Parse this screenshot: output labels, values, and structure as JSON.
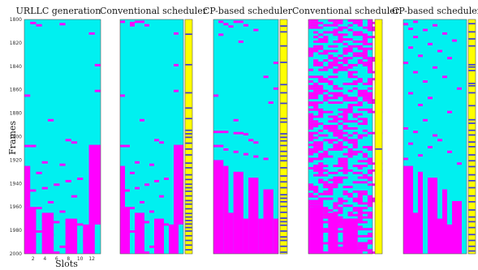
{
  "colors": {
    "free": "#00f0f0",
    "occupied": "#ff00ff",
    "strip_background": "#ffff00",
    "strip_mark": "#3a3adf"
  },
  "chart_data": [
    {
      "type": "heatmap",
      "title": "URLLC generation",
      "xlabel": "Slots",
      "ylabel": "Frames",
      "x_ticks": [
        2,
        4,
        6,
        8,
        10,
        12
      ],
      "y_ticks": [
        1800,
        1820,
        1840,
        1860,
        1880,
        1900,
        1920,
        1940,
        1960,
        1980,
        2000
      ],
      "slots": 13,
      "frame_range": [
        1800,
        2000
      ],
      "occupied_cells": [
        [
          1802,
          2
        ],
        [
          1804,
          3
        ],
        [
          1803,
          7
        ],
        [
          1811,
          12
        ],
        [
          1838,
          13
        ],
        [
          1860,
          13
        ],
        [
          1864,
          1
        ],
        [
          1885,
          5
        ],
        [
          1902,
          8
        ],
        [
          1904,
          9
        ],
        [
          1907,
          1
        ],
        [
          1907,
          2
        ],
        [
          1921,
          4
        ],
        [
          1923,
          7
        ],
        [
          1930,
          3
        ],
        [
          1935,
          10
        ],
        [
          1937,
          8
        ],
        [
          1940,
          6
        ],
        [
          1943,
          4
        ],
        [
          1945,
          1
        ],
        [
          1945,
          2
        ],
        [
          1950,
          9
        ],
        [
          1955,
          5
        ],
        [
          1960,
          3
        ],
        [
          1963,
          7
        ],
        [
          1970,
          1
        ],
        [
          1970,
          2
        ],
        [
          1971,
          4
        ],
        [
          1972,
          6
        ],
        [
          1973,
          8
        ],
        [
          1974,
          10
        ],
        [
          1975,
          12
        ],
        [
          1980,
          3
        ],
        [
          1983,
          5
        ],
        [
          1985,
          9
        ],
        [
          1988,
          11
        ],
        [
          1990,
          2
        ],
        [
          1993,
          7
        ],
        [
          1996,
          4
        ],
        [
          1998,
          6
        ]
      ],
      "occupied_bands": [
        [
          1907,
          1975,
          12,
          13
        ],
        [
          1925,
          1960,
          1,
          1
        ],
        [
          1960,
          2000,
          1,
          2
        ],
        [
          1965,
          2000,
          4,
          5
        ],
        [
          1970,
          2000,
          8,
          9
        ],
        [
          1975,
          2000,
          11,
          12
        ]
      ]
    },
    {
      "type": "heatmap",
      "title": "Conventional scheduler",
      "slots": 13,
      "frame_range": [
        1800,
        2000
      ],
      "occupied_cells": [
        [
          1801,
          1
        ],
        [
          1801,
          4
        ],
        [
          1801,
          5
        ],
        [
          1802,
          3
        ],
        [
          1804,
          3
        ],
        [
          1804,
          6
        ],
        [
          1811,
          12
        ],
        [
          1838,
          12
        ],
        [
          1860,
          12
        ],
        [
          1864,
          1
        ],
        [
          1885,
          5
        ],
        [
          1902,
          8
        ],
        [
          1904,
          9
        ],
        [
          1907,
          1
        ],
        [
          1907,
          2
        ],
        [
          1921,
          4
        ],
        [
          1923,
          7
        ],
        [
          1930,
          3
        ],
        [
          1935,
          10
        ],
        [
          1937,
          8
        ],
        [
          1940,
          6
        ],
        [
          1943,
          4
        ],
        [
          1945,
          1
        ],
        [
          1945,
          2
        ],
        [
          1950,
          9
        ],
        [
          1955,
          5
        ],
        [
          1960,
          3
        ],
        [
          1963,
          7
        ],
        [
          1970,
          1
        ],
        [
          1970,
          2
        ],
        [
          1971,
          4
        ],
        [
          1972,
          6
        ],
        [
          1973,
          8
        ],
        [
          1974,
          10
        ],
        [
          1975,
          12
        ],
        [
          1980,
          3
        ],
        [
          1983,
          5
        ],
        [
          1985,
          9
        ],
        [
          1988,
          11
        ],
        [
          1990,
          2
        ],
        [
          1993,
          7
        ],
        [
          1996,
          4
        ],
        [
          1998,
          6
        ]
      ],
      "occupied_bands": [
        [
          1907,
          1975,
          12,
          13
        ],
        [
          1925,
          1960,
          1,
          1
        ],
        [
          1960,
          2000,
          1,
          2
        ],
        [
          1965,
          2000,
          4,
          5
        ],
        [
          1970,
          2000,
          8,
          9
        ],
        [
          1975,
          2000,
          11,
          12
        ]
      ],
      "strip_marks": [
        1812,
        1838,
        1862,
        1875,
        1884,
        1894,
        1897,
        1900,
        1905,
        1910,
        1915,
        1922,
        1926,
        1932,
        1936,
        1940,
        1943,
        1946,
        1950,
        1954,
        1957,
        1961,
        1965,
        1968,
        1971,
        1974,
        1977,
        1980,
        1984,
        1988,
        1992,
        1996
      ]
    },
    {
      "type": "heatmap",
      "title": "CP-based scheduler",
      "slots": 13,
      "frame_range": [
        1800,
        2000
      ],
      "occupied_cells": [
        [
          1801,
          2
        ],
        [
          1801,
          5
        ],
        [
          1801,
          6
        ],
        [
          1803,
          3
        ],
        [
          1804,
          7
        ],
        [
          1805,
          4
        ],
        [
          1808,
          9
        ],
        [
          1812,
          2
        ],
        [
          1818,
          6
        ],
        [
          1836,
          13
        ],
        [
          1848,
          11
        ],
        [
          1858,
          13
        ],
        [
          1864,
          1
        ],
        [
          1870,
          12
        ],
        [
          1885,
          5
        ],
        [
          1895,
          1
        ],
        [
          1895,
          2
        ],
        [
          1895,
          3
        ],
        [
          1896,
          5
        ],
        [
          1896,
          6
        ],
        [
          1897,
          7
        ],
        [
          1902,
          8
        ],
        [
          1904,
          9
        ],
        [
          1907,
          1
        ],
        [
          1907,
          2
        ],
        [
          1910,
          3
        ],
        [
          1912,
          5
        ],
        [
          1914,
          7
        ],
        [
          1916,
          9
        ],
        [
          1918,
          11
        ]
      ],
      "occupied_bands": [
        [
          1920,
          2000,
          1,
          2
        ],
        [
          1925,
          2000,
          3,
          3
        ],
        [
          1930,
          2000,
          5,
          6
        ],
        [
          1935,
          2000,
          8,
          9
        ],
        [
          1945,
          2000,
          11,
          12
        ],
        [
          1965,
          2000,
          4,
          4
        ],
        [
          1970,
          2000,
          7,
          7
        ],
        [
          1970,
          2000,
          10,
          10
        ],
        [
          1970,
          2000,
          13,
          13
        ]
      ],
      "strip_marks": [
        1805,
        1810,
        1822,
        1836,
        1855,
        1862,
        1871,
        1884,
        1887,
        1897,
        1900,
        1903,
        1907,
        1912,
        1916,
        1920,
        1926,
        1933,
        1938,
        1943,
        1949,
        1952,
        1955,
        1959,
        1964,
        1969,
        1972,
        1975,
        1980,
        1985,
        1988,
        1993,
        1998
      ]
    },
    {
      "type": "heatmap",
      "title": "Conventional scheduler",
      "slots": 13,
      "frame_range": [
        1800,
        2000
      ],
      "dense_fill": 0.45,
      "occupied_cells": [],
      "occupied_bands": [
        [
          1960,
          2000,
          1,
          3
        ],
        [
          1965,
          2000,
          5,
          6
        ],
        [
          1970,
          2000,
          8,
          10
        ]
      ],
      "strip_marks": [
        1910
      ]
    },
    {
      "type": "heatmap",
      "title": "CP-based scheduler",
      "slots": 13,
      "frame_range": [
        1800,
        2000
      ],
      "occupied_cells": [
        [
          1801,
          3
        ],
        [
          1803,
          1
        ],
        [
          1804,
          7
        ],
        [
          1807,
          2
        ],
        [
          1808,
          5
        ],
        [
          1811,
          9
        ],
        [
          1814,
          3
        ],
        [
          1817,
          11
        ],
        [
          1820,
          6
        ],
        [
          1823,
          2
        ],
        [
          1826,
          8
        ],
        [
          1830,
          4
        ],
        [
          1832,
          10
        ],
        [
          1836,
          1
        ],
        [
          1840,
          7
        ],
        [
          1844,
          3
        ],
        [
          1848,
          9
        ],
        [
          1852,
          5
        ],
        [
          1858,
          12
        ],
        [
          1862,
          2
        ],
        [
          1866,
          6
        ],
        [
          1872,
          4
        ],
        [
          1878,
          10
        ],
        [
          1885,
          5
        ],
        [
          1892,
          1
        ],
        [
          1895,
          3
        ],
        [
          1898,
          7
        ],
        [
          1902,
          8
        ],
        [
          1905,
          2
        ],
        [
          1908,
          6
        ],
        [
          1912,
          10
        ],
        [
          1915,
          4
        ],
        [
          1918,
          1
        ],
        [
          1922,
          12
        ]
      ],
      "occupied_bands": [
        [
          1925,
          2000,
          1,
          2
        ],
        [
          1930,
          2000,
          4,
          4
        ],
        [
          1935,
          2000,
          6,
          7
        ],
        [
          1945,
          2000,
          9,
          9
        ],
        [
          1955,
          2000,
          11,
          12
        ],
        [
          1965,
          2000,
          3,
          3
        ],
        [
          1970,
          2000,
          8,
          8
        ],
        [
          1975,
          2000,
          10,
          10
        ]
      ],
      "strip_marks": [
        1803,
        1810,
        1816,
        1822,
        1838,
        1840,
        1843,
        1854,
        1856,
        1862,
        1873,
        1885,
        1888,
        1894,
        1898,
        1904,
        1908,
        1915,
        1920,
        1925,
        1932,
        1937,
        1943,
        1950,
        1955,
        1962,
        1968,
        1972,
        1977,
        1983,
        1988,
        1993,
        1997
      ]
    }
  ]
}
